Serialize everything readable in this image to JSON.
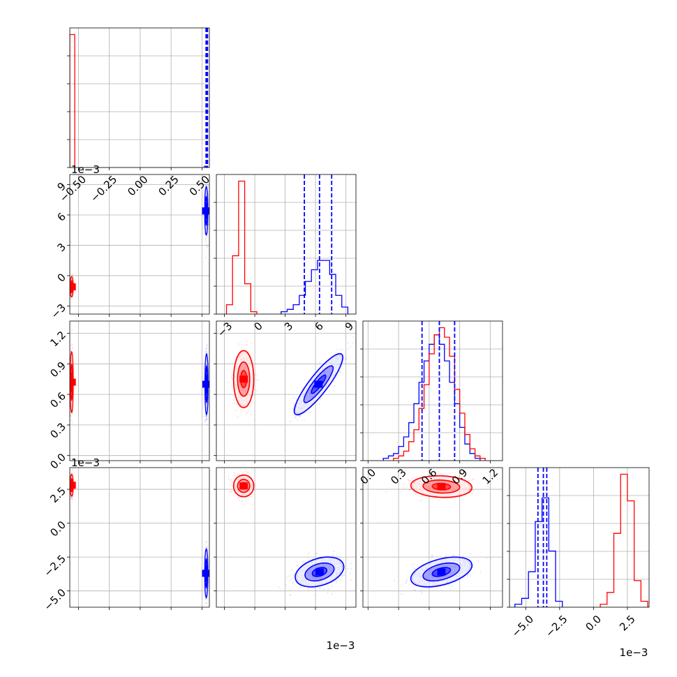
{
  "chart_data": {
    "type": "corner",
    "grid": true,
    "series": [
      {
        "name": "",
        "color": "#ff0000"
      },
      {
        "name": "",
        "color": "#0000ff"
      }
    ],
    "parameters": [
      {
        "range": [
          -0.57,
          0.56
        ],
        "ticks": [
          -0.5,
          -0.25,
          0.0,
          0.25,
          0.5
        ],
        "tick_labels": [
          "−0.50",
          "−0.25",
          "0.00",
          "0.25",
          "0.50"
        ],
        "offset": ""
      },
      {
        "range": [
          -3.8,
          10.0
        ],
        "ticks": [
          -3,
          0,
          3,
          6,
          9
        ],
        "tick_labels": [
          "−3",
          "0",
          "3",
          "6",
          "9"
        ],
        "offset": "1e−3"
      },
      {
        "range": [
          -0.05,
          1.32
        ],
        "ticks": [
          0.0,
          0.3,
          0.6,
          0.9,
          1.2
        ],
        "tick_labels": [
          "0.0",
          "0.3",
          "0.6",
          "0.9",
          "1.2"
        ],
        "offset": ""
      },
      {
        "range": [
          -6.2,
          4.1
        ],
        "ticks": [
          -5.0,
          -2.5,
          0.0,
          2.5
        ],
        "tick_labels": [
          "−5.0",
          "−2.5",
          "0.0",
          "2.5"
        ],
        "offset": "1e−3"
      }
    ],
    "histograms": [
      {
        "red": {
          "edges": [
            -0.57,
            -0.53
          ],
          "counts": [
            1.0
          ]
        },
        "blue": {
          "edges": [
            0.52,
            0.545
          ],
          "counts": [
            0.01
          ]
        },
        "quantiles_blue": [
          0.533,
          0.536,
          0.539,
          0.541,
          0.543,
          0.545
        ]
      },
      {
        "red": {
          "edges": [
            -2.8,
            -2.2,
            -1.6,
            -1.0,
            -0.4,
            0.2
          ],
          "counts": [
            0.04,
            0.25,
            0.57,
            0.13,
            0.01
          ]
        },
        "blue": {
          "edges": [
            2.6,
            3.2,
            3.8,
            4.4,
            5.0,
            5.6,
            6.2,
            6.8,
            7.4,
            8.0,
            8.6,
            9.2
          ],
          "counts": [
            0.01,
            0.02,
            0.04,
            0.08,
            0.14,
            0.19,
            0.23,
            0.23,
            0.17,
            0.08,
            0.03
          ]
        },
        "quantiles_blue": [
          4.9,
          6.4,
          7.6
        ]
      },
      {
        "red": {
          "edges": [
            0.25,
            0.3,
            0.35,
            0.4,
            0.45,
            0.5,
            0.55,
            0.6,
            0.65,
            0.7,
            0.75,
            0.8,
            0.85,
            0.9,
            0.95,
            1.0,
            1.05,
            1.1,
            1.15
          ],
          "counts": [
            0.01,
            0.02,
            0.04,
            0.08,
            0.13,
            0.22,
            0.32,
            0.45,
            0.53,
            0.56,
            0.52,
            0.44,
            0.3,
            0.2,
            0.11,
            0.05,
            0.02,
            0.01
          ]
        },
        "blue": {
          "edges": [
            0.15,
            0.2,
            0.25,
            0.3,
            0.35,
            0.4,
            0.45,
            0.5,
            0.55,
            0.6,
            0.65,
            0.7,
            0.75,
            0.8,
            0.85,
            0.9,
            0.95,
            1.0,
            1.05,
            1.1
          ],
          "counts": [
            0.01,
            0.02,
            0.03,
            0.06,
            0.1,
            0.16,
            0.24,
            0.33,
            0.42,
            0.49,
            0.53,
            0.49,
            0.42,
            0.33,
            0.24,
            0.14,
            0.07,
            0.03,
            0.01
          ]
        },
        "quantiles_blue": [
          0.53,
          0.7,
          0.85
        ]
      },
      {
        "red": {
          "edges": [
            0.5,
            1.0,
            1.5,
            2.0,
            2.5,
            3.0,
            3.5,
            4.0
          ],
          "counts": [
            0.01,
            0.05,
            0.25,
            0.45,
            0.36,
            0.09,
            0.02
          ]
        },
        "blue": {
          "edges": [
            -5.8,
            -5.3,
            -4.8,
            -4.3,
            -3.8,
            -3.3,
            -2.8,
            -2.3
          ],
          "counts": [
            0.01,
            0.03,
            0.12,
            0.29,
            0.37,
            0.19,
            0.02
          ]
        },
        "quantiles_blue": [
          -4.1,
          -3.7,
          -3.45
        ]
      }
    ],
    "scatter_2d": [
      {
        "x_param": 0,
        "y_param": 1,
        "red": {
          "center": [
            -0.555,
            -1.1
          ],
          "sd": [
            0.006,
            0.5
          ],
          "corr": 0.0
        },
        "blue": {
          "center": [
            0.535,
            6.4
          ],
          "sd": [
            0.006,
            1.2
          ],
          "corr": 0.0
        }
      },
      {
        "x_param": 0,
        "y_param": 2,
        "red": {
          "center": [
            -0.555,
            0.72
          ],
          "sd": [
            0.006,
            0.15
          ],
          "corr": 0.0
        },
        "blue": {
          "center": [
            0.537,
            0.7
          ],
          "sd": [
            0.006,
            0.15
          ],
          "corr": 0.0
        }
      },
      {
        "x_param": 1,
        "y_param": 2,
        "red": {
          "center": [
            -1.1,
            0.75
          ],
          "sd": [
            0.5,
            0.14
          ],
          "corr": 0.0
        },
        "blue": {
          "center": [
            6.3,
            0.7
          ],
          "sd": [
            1.2,
            0.15
          ],
          "corr": 0.88
        }
      },
      {
        "x_param": 0,
        "y_param": 3,
        "red": {
          "center": [
            -0.555,
            2.8
          ],
          "sd": [
            0.006,
            0.4
          ],
          "corr": 0.0
        },
        "blue": {
          "center": [
            0.535,
            -3.7
          ],
          "sd": [
            0.006,
            0.9
          ],
          "corr": 0.0
        }
      },
      {
        "x_param": 1,
        "y_param": 3,
        "red": {
          "center": [
            -1.1,
            2.75
          ],
          "sd": [
            0.5,
            0.4
          ],
          "corr": 0.0
        },
        "blue": {
          "center": [
            6.4,
            -3.6
          ],
          "sd": [
            1.2,
            0.55
          ],
          "corr": 0.35
        }
      },
      {
        "x_param": 2,
        "y_param": 3,
        "red": {
          "center": [
            0.72,
            2.7
          ],
          "sd": [
            0.15,
            0.4
          ],
          "corr": -0.1
        },
        "blue": {
          "center": [
            0.72,
            -3.6
          ],
          "sd": [
            0.15,
            0.55
          ],
          "corr": 0.45
        }
      }
    ]
  }
}
